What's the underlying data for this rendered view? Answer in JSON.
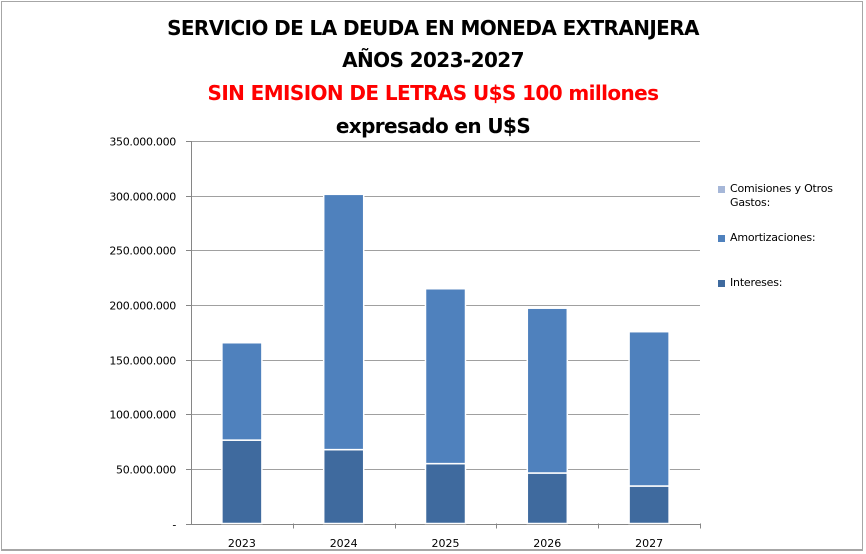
{
  "chart_data": {
    "type": "bar",
    "stacked": true,
    "title": "SERVICIO DE LA DEUDA  EN MONEDA EXTRANJERA",
    "subtitle_lines": [
      "AÑOS 2023-2027",
      "SIN EMISION DE LETRAS U$S 100 millones",
      "expresado en U$S"
    ],
    "subtitle_colors": [
      "#000000",
      "#ff0000",
      "#000000"
    ],
    "categories": [
      "2023",
      "2024",
      "2025",
      "2026",
      "2027"
    ],
    "series": [
      {
        "name": "Intereses:",
        "color": "#3f6a9e",
        "values": [
          76300000,
          67600000,
          54800000,
          46200000,
          34300000
        ]
      },
      {
        "name": "Amortizaciones:",
        "color": "#4f81bd",
        "values": [
          89100000,
          233600000,
          160000000,
          150800000,
          141200000
        ]
      },
      {
        "name": "Comisiones y Otros Gastos:",
        "color": "#a6b7d8",
        "values": [
          0,
          0,
          0,
          0,
          0
        ]
      }
    ],
    "legend_order": [
      "Comisiones y Otros Gastos:",
      "Amortizaciones:",
      "Intereses:"
    ],
    "yticks": [
      "-",
      "50.000.000",
      "100.000.000",
      "150.000.000",
      "200.000.000",
      "250.000.000",
      "300.000.000",
      "350.000.000"
    ],
    "ytick_values": [
      0,
      50000000,
      100000000,
      150000000,
      200000000,
      250000000,
      300000000,
      350000000
    ],
    "ylim": [
      0,
      350000000
    ],
    "xlabel": "",
    "ylabel": "",
    "grid": true,
    "legend_position": "right"
  }
}
